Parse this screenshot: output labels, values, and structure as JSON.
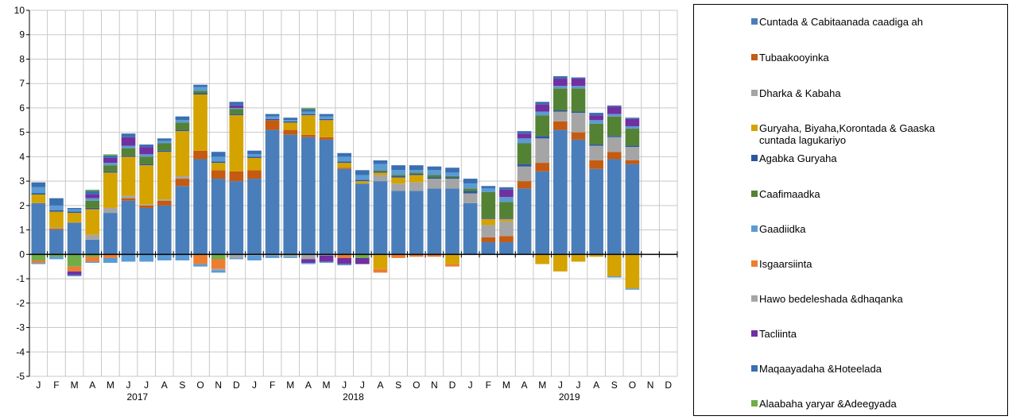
{
  "chart_data": {
    "type": "bar",
    "stacked": true,
    "ylim": [
      -5,
      10
    ],
    "yticks": [
      -5,
      -4,
      -3,
      -2,
      -1,
      0,
      1,
      2,
      3,
      4,
      5,
      6,
      7,
      8,
      9,
      10
    ],
    "categories": [
      "J",
      "F",
      "M",
      "A",
      "M",
      "J",
      "J",
      "A",
      "S",
      "O",
      "N",
      "D",
      "J",
      "F",
      "M",
      "A",
      "M",
      "J",
      "J",
      "A",
      "S",
      "O",
      "N",
      "D",
      "J",
      "F",
      "M",
      "A",
      "M",
      "J",
      "J",
      "A",
      "S",
      "O",
      "N",
      "D"
    ],
    "year_labels": [
      {
        "label": "2017",
        "start": 0,
        "end": 11
      },
      {
        "label": "2018",
        "start": 12,
        "end": 23
      },
      {
        "label": "2019",
        "start": 24,
        "end": 35
      }
    ],
    "grid": true,
    "legend_position": "right",
    "series": [
      {
        "name": "Cuntada & Cabitaanada  caadiga ah",
        "color": "#4a7ebb",
        "values": [
          2.1,
          1.0,
          1.3,
          0.6,
          1.7,
          2.2,
          1.9,
          2.0,
          2.8,
          3.9,
          3.1,
          3.0,
          3.1,
          5.1,
          4.9,
          4.8,
          4.7,
          3.5,
          2.9,
          3.0,
          2.6,
          2.6,
          2.7,
          2.7,
          2.1,
          0.5,
          0.5,
          2.7,
          3.4,
          5.1,
          4.7,
          3.5,
          3.9,
          3.7,
          null,
          null
        ]
      },
      {
        "name": "Tubaakooyinka",
        "color": "#c55a11",
        "values": [
          0,
          0.05,
          0,
          0,
          0,
          0.1,
          0.1,
          0.2,
          0.3,
          0.35,
          0.35,
          0.4,
          0.35,
          0.4,
          0.2,
          0.1,
          0.1,
          0.05,
          0,
          0,
          0,
          0,
          0,
          0,
          0,
          0.2,
          0.25,
          0.3,
          0.35,
          0.35,
          0.3,
          0.35,
          0.3,
          0.15,
          null,
          null
        ]
      },
      {
        "name": "Dharka & Kabaha",
        "color": "#a5a5a5",
        "values": [
          0,
          0.05,
          0,
          0.2,
          0.2,
          0.1,
          0.05,
          0.05,
          0.1,
          0,
          0,
          0,
          0,
          0,
          0,
          0,
          0,
          0,
          0,
          0.25,
          0.3,
          0.35,
          0.4,
          0.4,
          0.4,
          0.5,
          0.6,
          0.6,
          1.0,
          0.4,
          0.8,
          0.6,
          0.6,
          0.55,
          null,
          null
        ]
      },
      {
        "name": "Guryaha, Biyaha,Korontada  & Gaaska\ncuntada lagukariyo",
        "color": "#d4a300",
        "values": [
          0.35,
          0.65,
          0.4,
          1.05,
          1.45,
          1.6,
          1.6,
          1.95,
          1.85,
          2.3,
          0.3,
          2.3,
          0.5,
          0,
          0.3,
          0.8,
          0.7,
          0.2,
          0.1,
          0.1,
          0.25,
          0.3,
          0,
          0,
          0,
          0.25,
          0.1,
          0,
          0,
          0,
          0,
          0,
          0,
          0,
          null,
          null
        ]
      },
      {
        "name": "Agabka  Guryaha",
        "color": "#2a56a0",
        "values": [
          0.05,
          0.05,
          0.05,
          0.05,
          0.05,
          0.05,
          0.05,
          0.05,
          0.05,
          0.05,
          0.05,
          0.05,
          0.05,
          0.05,
          0.05,
          0.05,
          0.05,
          0.05,
          0.05,
          0.05,
          0.05,
          0.05,
          0.05,
          0.05,
          0.1,
          0.05,
          0.05,
          0.1,
          0.1,
          0.05,
          0.05,
          0.05,
          0.05,
          0.05,
          null,
          null
        ]
      },
      {
        "name": "Caafimaadka",
        "color": "#548235",
        "values": [
          0,
          0,
          0,
          0.3,
          0.25,
          0.3,
          0.3,
          0.3,
          0.3,
          0.1,
          0,
          0.2,
          0,
          0,
          0,
          0,
          0,
          0,
          0,
          0.05,
          0.05,
          0.05,
          0.1,
          0.05,
          0.1,
          1.05,
          0.65,
          0.85,
          0.85,
          0.9,
          0.95,
          0.85,
          0.8,
          0.7,
          null,
          null
        ]
      },
      {
        "name": "Gaadiidka",
        "color": "#5b9bd5",
        "values": [
          0.25,
          0.2,
          0.1,
          0.1,
          0.1,
          0.1,
          0.1,
          0.1,
          0.1,
          0.15,
          0.2,
          0.05,
          0.1,
          0.1,
          0.05,
          0.1,
          0.1,
          0.2,
          0.2,
          0.25,
          0.2,
          0.1,
          0.2,
          0.15,
          0.2,
          0.15,
          0.2,
          0.2,
          0.15,
          0.1,
          0.1,
          0.15,
          0.1,
          0.1,
          null,
          null
        ]
      },
      {
        "name": "Isgaarsiinta",
        "color": "#ed7d31",
        "values": [
          0,
          0,
          0,
          0,
          0,
          0,
          0,
          0,
          0,
          0,
          0,
          0,
          0,
          0,
          0,
          0,
          0,
          0,
          0,
          0,
          0,
          0,
          0,
          0,
          0,
          0,
          0,
          0,
          0,
          0,
          0,
          0,
          0,
          0,
          null,
          null
        ]
      },
      {
        "name": "Hawo bedeleshada  &dhaqanka",
        "color": "#a5a5a5",
        "values": [
          0,
          0,
          0,
          0,
          0,
          0,
          0,
          0,
          0,
          0,
          0,
          0,
          0,
          0,
          0,
          0,
          0,
          0,
          0,
          0,
          0,
          0,
          0,
          0,
          0,
          0,
          0,
          0,
          0,
          0,
          0,
          0,
          0,
          0,
          null,
          null
        ]
      },
      {
        "name": "Tacliinta",
        "color": "#7030a0",
        "values": [
          0,
          0,
          0,
          0.15,
          0.2,
          0.35,
          0.3,
          0,
          0,
          0,
          0,
          0.1,
          0,
          0,
          0,
          0,
          0,
          0,
          0,
          0,
          0,
          0,
          0,
          0,
          0,
          0,
          0.3,
          0.2,
          0.3,
          0.3,
          0.3,
          0.2,
          0.3,
          0.3,
          null,
          null
        ]
      },
      {
        "name": "Maqaayadaha  &Hoteelada",
        "color": "#3a6fb0",
        "values": [
          0.2,
          0.3,
          0.05,
          0.15,
          0.1,
          0.15,
          0.1,
          0.1,
          0.15,
          0.1,
          0.2,
          0.15,
          0.15,
          0.1,
          0.1,
          0.1,
          0.1,
          0.15,
          0.2,
          0.15,
          0.2,
          0.2,
          0.15,
          0.2,
          0.2,
          0.1,
          0.1,
          0.1,
          0.1,
          0.1,
          0.05,
          0.1,
          0.05,
          0.05,
          null,
          null
        ]
      },
      {
        "name": "Alaabaha  yaryar &Adeegyada",
        "color": "#70ad47",
        "values": [
          0,
          0,
          0,
          0.05,
          0.05,
          0,
          0,
          0,
          0,
          0,
          0,
          0,
          0,
          0,
          0,
          0.05,
          0,
          0,
          0,
          0,
          0,
          0,
          0,
          0,
          0,
          0,
          0,
          0,
          0,
          0,
          0,
          0,
          0,
          0,
          null,
          null
        ]
      }
    ],
    "negative_series": [
      {
        "name": "Alaabaha  yaryar &Adeegyada",
        "color": "#70ad47",
        "values": [
          0.25,
          0.1,
          0.5,
          0.1,
          0,
          0,
          0,
          0,
          0,
          0,
          0.2,
          0,
          0,
          0,
          0,
          0,
          0,
          0,
          0.15,
          0,
          0,
          0,
          0,
          0,
          0,
          0,
          0,
          0,
          0,
          0,
          0,
          0,
          0,
          0,
          null,
          null
        ]
      },
      {
        "name": "Guryaha, Biyaha,Korontada  & Gaaska\ncuntada lagukariyo",
        "color": "#d4a300",
        "values": [
          0,
          0,
          0,
          0,
          0,
          0,
          0,
          0,
          0,
          0,
          0,
          0,
          0,
          0,
          0,
          0,
          0,
          0,
          0,
          0.6,
          0,
          0,
          0,
          0.4,
          0,
          0,
          0,
          0,
          0.4,
          0.7,
          0.3,
          0.1,
          0.9,
          1.4,
          null,
          null
        ]
      },
      {
        "name": "Isgaarsiinta",
        "color": "#ed7d31",
        "values": [
          0.1,
          0,
          0.2,
          0.2,
          0.15,
          0,
          0,
          0,
          0,
          0.4,
          0.4,
          0,
          0,
          0,
          0,
          0,
          0,
          0.15,
          0,
          0.15,
          0.15,
          0.1,
          0.1,
          0.1,
          0,
          0,
          0,
          0,
          0,
          0,
          0,
          0,
          0,
          0,
          null,
          null
        ]
      },
      {
        "name": "Hawo bedeleshada  &dhaqanka",
        "color": "#a5a5a5",
        "values": [
          0,
          0,
          0,
          0,
          0,
          0,
          0,
          0,
          0,
          0,
          0.05,
          0.15,
          0.05,
          0.05,
          0.1,
          0.2,
          0.05,
          0,
          0,
          0,
          0,
          0,
          0,
          0,
          0,
          0,
          0,
          0,
          0,
          0,
          0,
          0,
          0,
          0,
          null,
          null
        ]
      },
      {
        "name": "Tacliinta",
        "color": "#7030a0",
        "values": [
          0,
          0,
          0.15,
          0,
          0,
          0,
          0,
          0,
          0,
          0,
          0,
          0,
          0,
          0,
          0,
          0.15,
          0.25,
          0.25,
          0.25,
          0,
          0,
          0,
          0,
          0,
          0,
          0,
          0,
          0,
          0,
          0,
          0,
          0,
          0,
          0,
          null,
          null
        ]
      },
      {
        "name": "Gaadiidka",
        "color": "#5b9bd5",
        "values": [
          0.05,
          0.1,
          0.05,
          0.05,
          0.2,
          0.3,
          0.3,
          0.25,
          0.25,
          0.1,
          0.1,
          0.05,
          0.2,
          0.1,
          0.05,
          0.05,
          0.05,
          0.05,
          0,
          0,
          0,
          0,
          0,
          0,
          0,
          0,
          0,
          0,
          0,
          0,
          0,
          0,
          0.05,
          0.05,
          null,
          null
        ]
      }
    ]
  },
  "legend": [
    {
      "label": "Cuntada & Cabitaanada  caadiga ah",
      "color": "#4a7ebb"
    },
    {
      "label": "Tubaakooyinka",
      "color": "#c55a11"
    },
    {
      "label": "Dharka & Kabaha",
      "color": "#a5a5a5"
    },
    {
      "label": "Guryaha, Biyaha,Korontada  & Gaaska\ncuntada lagukariyo",
      "color": "#d4a300"
    },
    {
      "label": "Agabka  Guryaha",
      "color": "#2a56a0"
    },
    {
      "label": "Caafimaadka",
      "color": "#548235"
    },
    {
      "label": "Gaadiidka",
      "color": "#5b9bd5"
    },
    {
      "label": "Isgaarsiinta",
      "color": "#ed7d31"
    },
    {
      "label": "Hawo bedeleshada  &dhaqanka",
      "color": "#a5a5a5"
    },
    {
      "label": "Tacliinta",
      "color": "#7030a0"
    },
    {
      "label": "Maqaayadaha  &Hoteelada",
      "color": "#3a6fb0"
    },
    {
      "label": "Alaabaha  yaryar &Adeegyada",
      "color": "#70ad47"
    }
  ]
}
